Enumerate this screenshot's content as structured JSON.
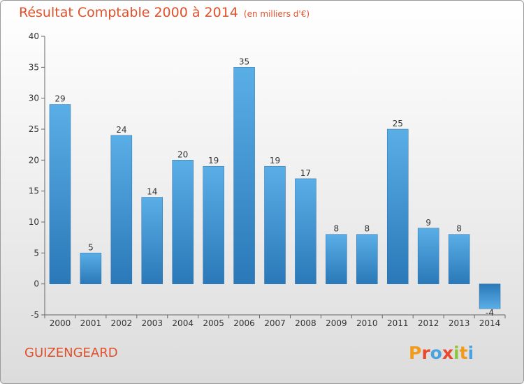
{
  "header": {
    "title": "Résultat Comptable 2000 à 2014",
    "subtitle": "(en milliers d'€)"
  },
  "footer": {
    "place": "GUIZENGEARD",
    "logo_letters": [
      "P",
      "r",
      "o",
      "x",
      "i",
      "t",
      "i"
    ],
    "logo_colors": [
      "#f29a1c",
      "#e84a2f",
      "#4aa3df",
      "#e84a2f",
      "#8cc63f",
      "#f29a1c",
      "#4aa3df"
    ]
  },
  "chart_data": {
    "type": "bar",
    "title": "Résultat Comptable 2000 à 2014",
    "subtitle": "(en milliers d'€)",
    "categories": [
      "2000",
      "2001",
      "2002",
      "2003",
      "2004",
      "2005",
      "2006",
      "2007",
      "2008",
      "2009",
      "2010",
      "2011",
      "2012",
      "2013",
      "2014"
    ],
    "values": [
      29,
      5,
      24,
      14,
      20,
      19,
      35,
      19,
      17,
      8,
      8,
      25,
      9,
      8,
      -4
    ],
    "data_labels": [
      "29",
      "5",
      "24",
      "14",
      "20",
      "19",
      "35",
      "19",
      "17",
      "8",
      "8",
      "25",
      "9",
      "8",
      "-4"
    ],
    "ylim": [
      -5,
      40
    ],
    "yticks": [
      -5,
      0,
      5,
      10,
      15,
      20,
      25,
      30,
      35,
      40
    ],
    "ytick_labels": [
      "-5",
      "0",
      "5",
      "10",
      "15",
      "20",
      "25",
      "30",
      "35",
      "40"
    ],
    "grid": false,
    "legend": "none",
    "bar_color": "#3d95d6"
  }
}
